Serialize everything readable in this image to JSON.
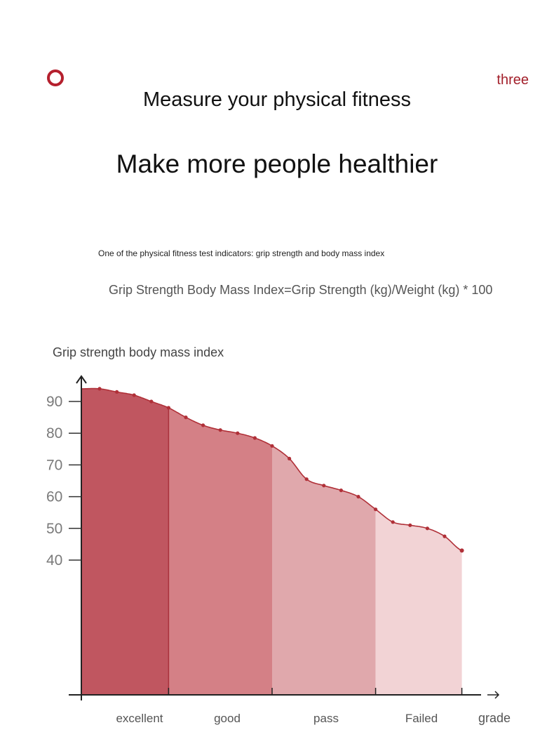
{
  "header": {
    "page_label": "three",
    "title": "Measure your physical fitness",
    "subtitle": "Make more people healthier",
    "note": "One of the physical fitness test indicators: grip strength and body mass index",
    "formula": "Grip Strength Body Mass Index=Grip Strength (kg)/Weight (kg) * 100"
  },
  "colors": {
    "accent": "#b5202e",
    "zone_excellent": "#c05660",
    "zone_good": "#d48086",
    "zone_pass": "#e0a8ac",
    "zone_failed": "#f2d3d5",
    "curve": "#b03038"
  },
  "chart_data": {
    "type": "area",
    "title": "",
    "ylabel": "Grip strength body mass index",
    "xlabel": "grade",
    "y_ticks": [
      90,
      80,
      70,
      60,
      50,
      40
    ],
    "ylim": [
      0,
      100
    ],
    "categories": [
      "excellent",
      "good",
      "pass",
      "Failed"
    ],
    "category_point_ranges": [
      [
        0,
        4
      ],
      [
        4,
        10
      ],
      [
        10,
        16
      ],
      [
        16,
        22
      ]
    ],
    "points": [
      94,
      93,
      92,
      90,
      88,
      85,
      82.5,
      81,
      80,
      78.5,
      76,
      72,
      65.5,
      63.5,
      62,
      60,
      56,
      52,
      51,
      50,
      47.5,
      43
    ],
    "grid": false,
    "legend": "none"
  }
}
